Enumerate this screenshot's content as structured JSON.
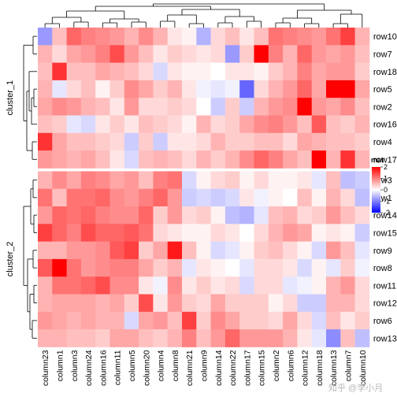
{
  "watermark": "知乎 @李小月",
  "chart_data": {
    "type": "heatmap",
    "title": "",
    "columns": [
      "column23",
      "column1",
      "column3",
      "column24",
      "column16",
      "column11",
      "column5",
      "column20",
      "column4",
      "column8",
      "column21",
      "column9",
      "column14",
      "column22",
      "column17",
      "column15",
      "column2",
      "column6",
      "column12",
      "column18",
      "column13",
      "column7",
      "column10"
    ],
    "rows": [
      "row10",
      "row7",
      "row18",
      "row5",
      "row2",
      "row16",
      "row4",
      "row17",
      "row3",
      "row1",
      "row14",
      "row15",
      "row9",
      "row8",
      "row11",
      "row12",
      "row6",
      "row13"
    ],
    "row_groups": [
      {
        "label": "cluster_1",
        "rows": [
          "row10",
          "row7",
          "row18",
          "row5",
          "row2",
          "row16",
          "row4",
          "row17"
        ]
      },
      {
        "label": "cluster_2",
        "rows": [
          "row3",
          "row1",
          "row14",
          "row15",
          "row9",
          "row8",
          "row11",
          "row12",
          "row6",
          "row13"
        ]
      }
    ],
    "values": [
      [
        -0.8,
        0.5,
        1.2,
        1.0,
        0.9,
        0.8,
        0.6,
        0.9,
        0.6,
        0.2,
        0.1,
        -0.6,
        0.3,
        0.5,
        0.2,
        0.5,
        1.1,
        1.0,
        0.9,
        0.8,
        1.1,
        1.5,
        0.6
      ],
      [
        0.6,
        0.3,
        0.7,
        0.8,
        1.0,
        1.4,
        0.8,
        0.5,
        0.2,
        0.4,
        0.3,
        0.2,
        0.3,
        -0.8,
        0.4,
        2.0,
        1.0,
        0.6,
        1.2,
        0.8,
        0.7,
        0.8,
        0.5
      ],
      [
        0.5,
        1.6,
        0.5,
        0.5,
        0.7,
        0.6,
        0.5,
        0.3,
        -0.3,
        0.2,
        0.1,
        0.1,
        0.0,
        0.2,
        0.2,
        0.1,
        0.4,
        0.6,
        1.0,
        0.7,
        0.8,
        0.8,
        0.4
      ],
      [
        0.6,
        -0.2,
        0.3,
        0.5,
        0.1,
        0.4,
        0.9,
        0.7,
        0.4,
        0.6,
        0.2,
        -0.1,
        -0.2,
        -0.1,
        -1.2,
        0.3,
        0.6,
        0.8,
        1.2,
        0.7,
        2.2,
        2.3,
        0.7
      ],
      [
        0.7,
        0.9,
        0.8,
        0.6,
        0.5,
        0.2,
        0.8,
        0.3,
        0.3,
        0.4,
        0.3,
        0.0,
        -0.4,
        0.4,
        -0.4,
        0.6,
        0.8,
        0.9,
        2.2,
        0.8,
        0.7,
        0.9,
        0.5
      ],
      [
        0.5,
        0.4,
        -0.2,
        -0.3,
        0.2,
        0.4,
        0.2,
        0.5,
        0.4,
        0.3,
        0.1,
        0.6,
        0.3,
        0.4,
        0.7,
        0.9,
        1.0,
        0.8,
        0.5,
        1.3,
        0.5,
        0.4,
        0.6
      ],
      [
        1.6,
        0.7,
        0.5,
        0.5,
        0.4,
        0.3,
        -0.4,
        0.4,
        -0.4,
        0.2,
        0.2,
        0.3,
        0.6,
        0.4,
        0.4,
        0.5,
        0.5,
        0.3,
        0.7,
        0.6,
        0.5,
        0.5,
        0.4
      ],
      [
        0.8,
        0.7,
        0.6,
        0.7,
        0.5,
        0.2,
        -0.3,
        0.5,
        0.6,
        0.5,
        0.3,
        0.6,
        0.4,
        0.6,
        0.9,
        1.2,
        1.0,
        0.7,
        0.5,
        2.4,
        0.6,
        1.6,
        0.6
      ],
      [
        0.6,
        0.9,
        0.7,
        1.0,
        0.9,
        0.7,
        0.8,
        0.5,
        1.0,
        1.1,
        -0.3,
        0.1,
        0.3,
        0.4,
        0.1,
        0.3,
        0.1,
        0.1,
        0.2,
        -0.2,
        0.5,
        -0.5,
        -0.4
      ],
      [
        1.1,
        0.5,
        1.1,
        1.1,
        1.2,
        0.9,
        0.8,
        1.0,
        1.2,
        0.8,
        -0.4,
        -0.3,
        -0.4,
        -0.3,
        0.2,
        -0.1,
        0.1,
        0.0,
        0.5,
        0.1,
        0.6,
        0.3,
        -0.5
      ],
      [
        0.8,
        1.2,
        1.1,
        1.2,
        1.0,
        0.9,
        0.9,
        1.2,
        0.4,
        0.8,
        0.3,
        0.4,
        0.1,
        -0.5,
        -0.6,
        -0.2,
        0.5,
        0.6,
        0.3,
        0.4,
        0.8,
        0.5,
        0.3
      ],
      [
        1.5,
        1.2,
        1.0,
        1.4,
        1.2,
        1.2,
        1.3,
        1.1,
        0.3,
        0.2,
        0.1,
        0.1,
        0.3,
        0.2,
        0.0,
        0.3,
        0.6,
        0.8,
        0.7,
        0.1,
        0.2,
        0.1,
        -0.4
      ],
      [
        0.6,
        0.6,
        0.8,
        0.8,
        0.9,
        1.3,
        1.5,
        0.4,
        0.7,
        1.8,
        0.5,
        0.1,
        -0.3,
        -0.2,
        0.1,
        0.4,
        0.5,
        0.3,
        0.1,
        -0.3,
        0.8,
        0.5,
        -0.2
      ],
      [
        1.3,
        2.1,
        1.1,
        0.8,
        0.9,
        1.0,
        1.0,
        0.7,
        0.4,
        0.6,
        -0.2,
        0.2,
        0.1,
        0.0,
        -0.2,
        0.3,
        0.3,
        0.2,
        -0.3,
        0.1,
        -0.2,
        0.4,
        -0.1
      ],
      [
        0.6,
        1.1,
        1.1,
        1.2,
        1.4,
        0.9,
        0.9,
        0.2,
        -0.1,
        0.9,
        0.2,
        0.4,
        0.2,
        0.3,
        -0.3,
        0.3,
        0.3,
        -0.2,
        -0.1,
        0.1,
        0.6,
        0.8,
        0.3
      ],
      [
        0.6,
        0.7,
        0.7,
        0.7,
        0.6,
        0.7,
        0.4,
        1.4,
        0.2,
        0.8,
        0.4,
        0.3,
        0.7,
        0.4,
        0.4,
        0.4,
        0.1,
        0.3,
        -0.4,
        -0.4,
        0.6,
        0.6,
        0.3
      ],
      [
        0.8,
        0.7,
        0.6,
        0.7,
        0.6,
        0.6,
        -0.3,
        0.7,
        0.8,
        0.5,
        1.5,
        0.4,
        0.9,
        0.7,
        0.4,
        0.4,
        0.3,
        0.7,
        0.3,
        -0.3,
        0.5,
        0.2,
        0.4
      ],
      [
        0.6,
        0.6,
        0.5,
        0.5,
        0.4,
        0.7,
        0.7,
        0.5,
        0.4,
        0.6,
        1.0,
        0.5,
        0.8,
        1.2,
        0.8,
        0.8,
        0.8,
        0.6,
        0.2,
        -0.2,
        -0.9,
        0.5,
        -0.5
      ]
    ],
    "color_legend": {
      "title": "mat",
      "ticks": [
        2,
        1,
        0,
        -1,
        -2
      ],
      "colors": {
        "low": "#0000ff",
        "mid": "#ffffff",
        "high": "#ff0000"
      },
      "range": [
        -2,
        2
      ]
    }
  }
}
